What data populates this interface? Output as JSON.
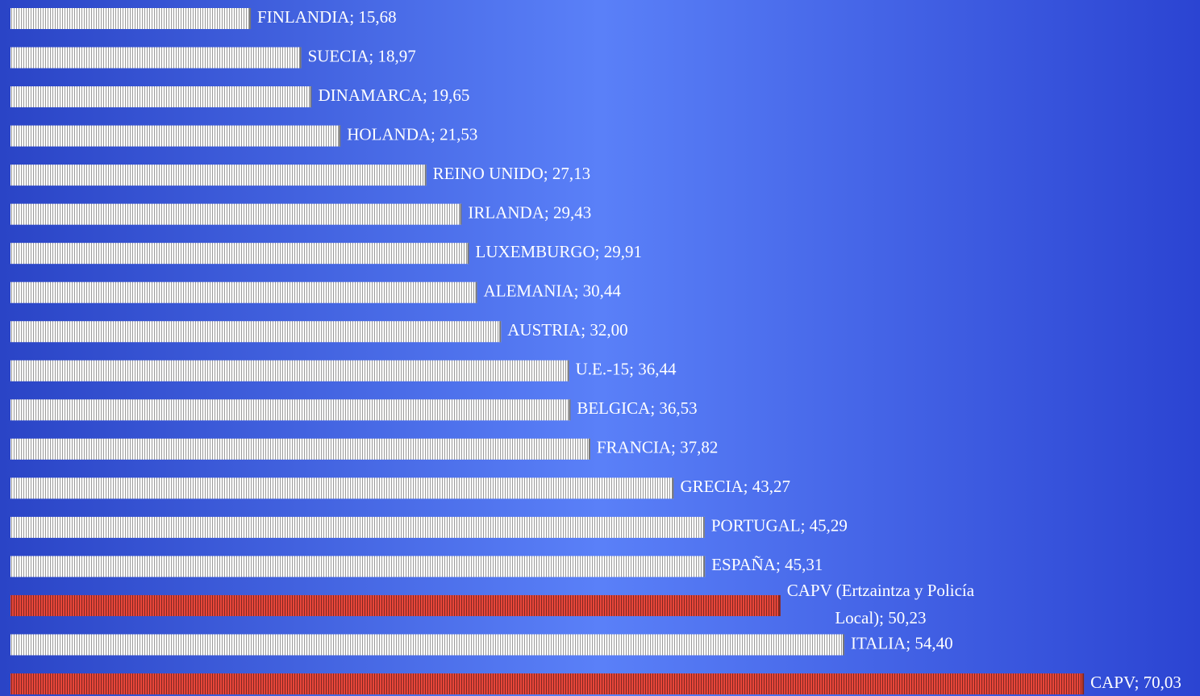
{
  "chart_data": {
    "type": "bar",
    "orientation": "horizontal",
    "values": [
      15.68,
      18.97,
      19.65,
      21.53,
      27.13,
      29.43,
      29.91,
      30.44,
      32.0,
      36.44,
      36.53,
      37.82,
      43.27,
      45.29,
      45.31,
      50.23,
      54.4,
      70.03
    ],
    "value_labels": [
      "FINLANDIA; 15,68",
      "SUECIA; 18,97",
      "DINAMARCA; 19,65",
      "HOLANDA; 21,53",
      "REINO UNIDO; 27,13",
      "IRLANDA; 29,43",
      "LUXEMBURGO; 29,91",
      "ALEMANIA; 30,44",
      "AUSTRIA; 32,00",
      "U.E.-15; 36,44",
      "BELGICA; 36,53",
      "FRANCIA; 37,82",
      "GRECIA; 43,27",
      "PORTUGAL; 45,29",
      "ESPAÑA; 45,31",
      "CAPV (Ertzaintza y Policía\nLocal); 50,23",
      "ITALIA; 54,40",
      "CAPV; 70,03"
    ],
    "colors": [
      "#dcdcdc",
      "#dcdcdc",
      "#dcdcdc",
      "#dcdcdc",
      "#dcdcdc",
      "#dcdcdc",
      "#dcdcdc",
      "#dcdcdc",
      "#dcdcdc",
      "#dcdcdc",
      "#dcdcdc",
      "#dcdcdc",
      "#dcdcdc",
      "#dcdcdc",
      "#dcdcdc",
      "#e8463a",
      "#dcdcdc",
      "#e8463a"
    ],
    "xlim": [
      0,
      77.6
    ]
  }
}
